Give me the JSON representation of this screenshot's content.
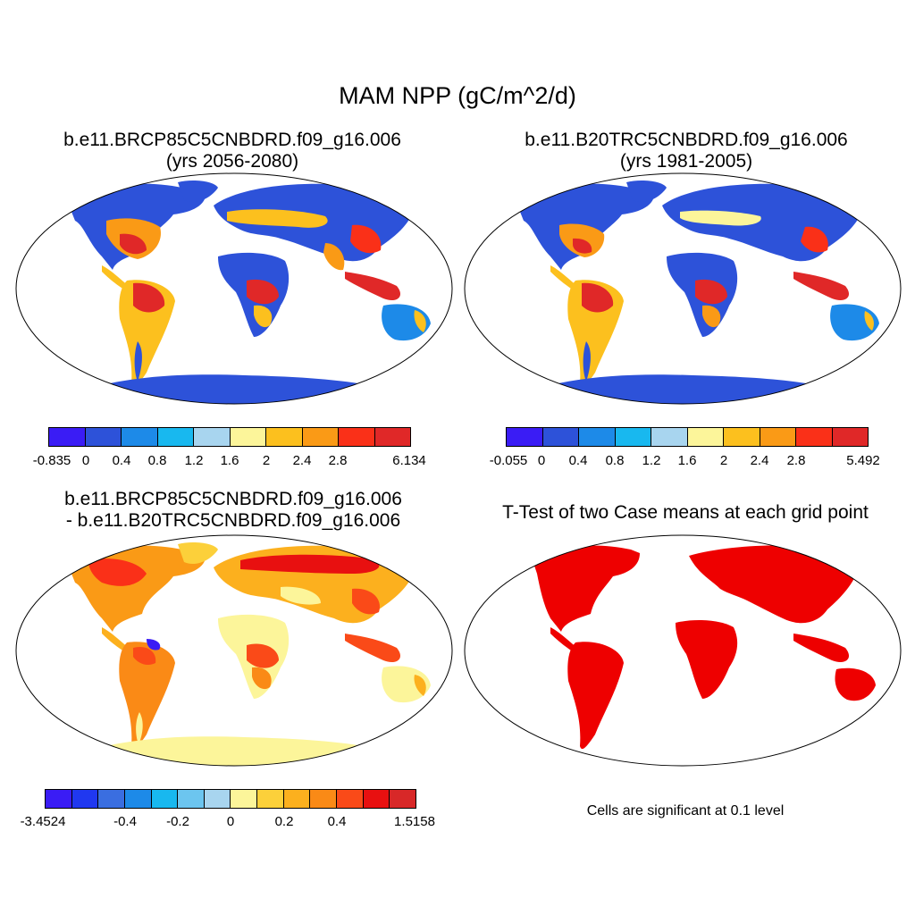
{
  "title": "MAM NPP (gC/m^2/d)",
  "panels": [
    {
      "title_line1": "b.e11.BRCP85C5CNBDRD.f09_g16.006",
      "title_line2": "(yrs 2056-2080)",
      "colors": [
        "#3a1cf5",
        "#2d52d9",
        "#1d8ae8",
        "#18b8ef",
        "#a8d5ef",
        "#fcf59a",
        "#fcc01e",
        "#fa9a16",
        "#fa3018",
        "#e02828"
      ],
      "tick_labels": [
        "-0.835",
        "0",
        "0.4",
        "0.8",
        "1.2",
        "1.6",
        "2",
        "2.4",
        "2.8",
        "6.134"
      ]
    },
    {
      "title_line1": "b.e11.B20TRC5CNBDRD.f09_g16.006",
      "title_line2": "(yrs 1981-2005)",
      "colors": [
        "#3a1cf5",
        "#2d52d9",
        "#1d8ae8",
        "#18b8ef",
        "#a8d5ef",
        "#fcf59a",
        "#fcc01e",
        "#fa9a16",
        "#fa3018",
        "#e02828"
      ],
      "tick_labels": [
        "-0.055",
        "0",
        "0.4",
        "0.8",
        "1.2",
        "1.6",
        "2",
        "2.4",
        "2.8",
        "5.492"
      ]
    },
    {
      "title_line1": "b.e11.BRCP85C5CNBDRD.f09_g16.006",
      "title_line2": "- b.e11.B20TRC5CNBDRD.f09_g16.006",
      "colors": [
        "#3a1cf5",
        "#2038f0",
        "#3a6ee0",
        "#1d8ae8",
        "#18b8ef",
        "#6cc5ef",
        "#a8d5ef",
        "#fcf59a",
        "#fcd03a",
        "#fcb01e",
        "#fa8a16",
        "#fa4a18",
        "#e81010",
        "#d82828"
      ],
      "tick_labels": [
        "-3.4524",
        "-0.4",
        "-0.2",
        "0",
        "0.2",
        "0.4",
        "1.5158"
      ]
    },
    {
      "title_line1": "T-Test of two Case means at each grid point",
      "note": "Cells are significant at 0.1 level"
    }
  ],
  "legend_colors": {
    "significant": "#ee0000"
  }
}
